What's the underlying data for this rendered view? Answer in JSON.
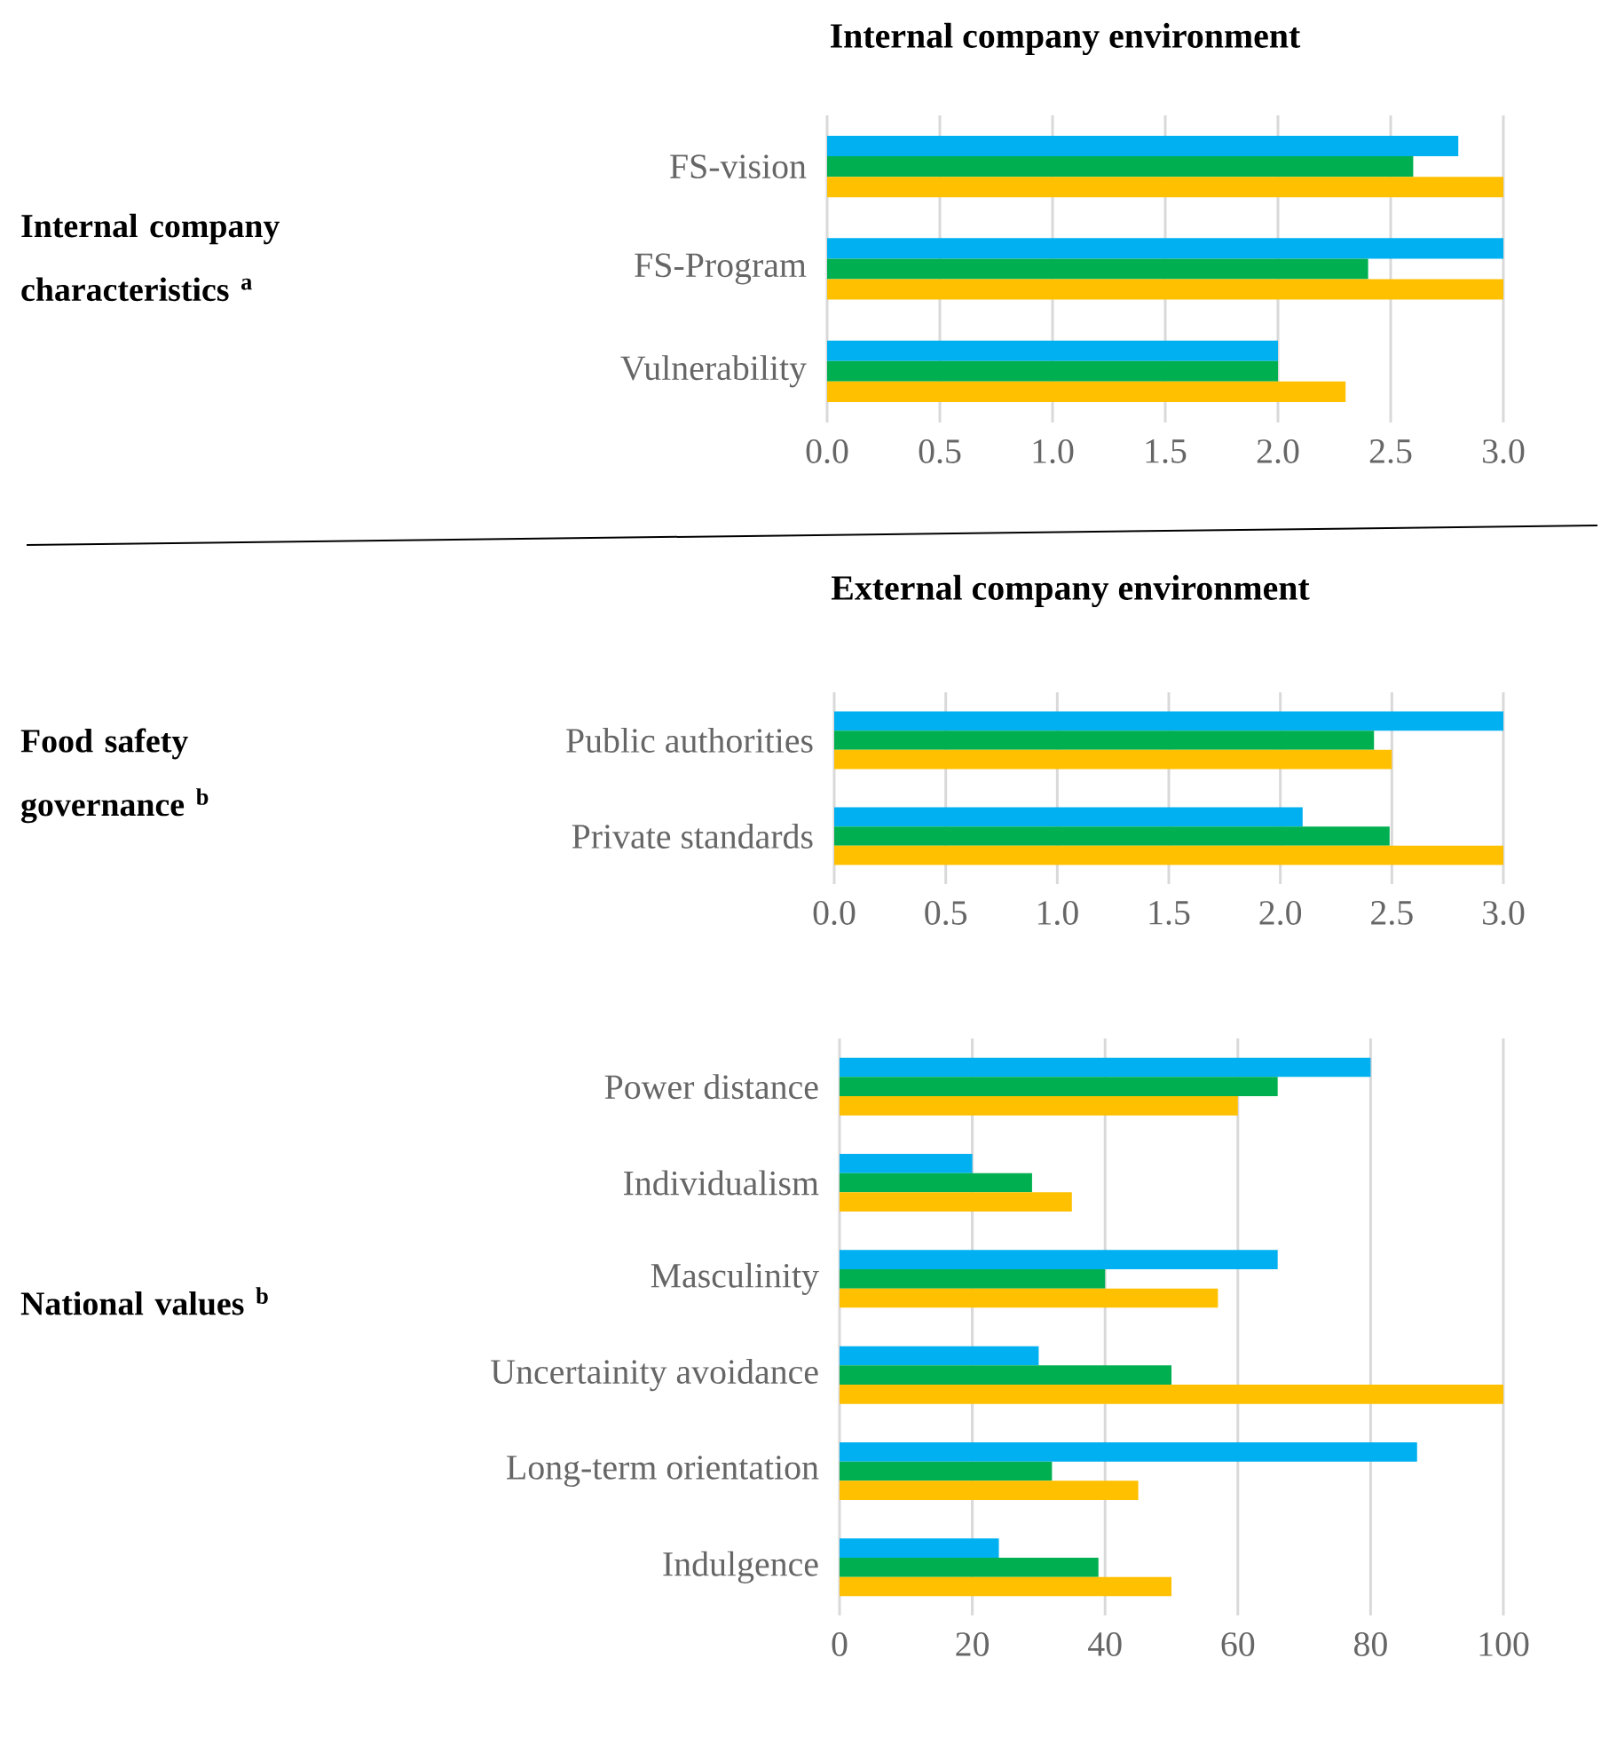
{
  "chart_data": [
    {
      "type": "bar",
      "orientation": "horizontal",
      "title": "Internal company environment",
      "ylabel": "Internal company characteristics $^{a}$",
      "categories": [
        "FS-vision",
        "FS-Program",
        "Vulnerability"
      ],
      "series": [
        {
          "color": "#00b0f0",
          "values": [
            2.8,
            3.0,
            2.0
          ]
        },
        {
          "color": "#00b050",
          "values": [
            2.6,
            2.4,
            2.0
          ]
        },
        {
          "color": "#ffc000",
          "values": [
            3.0,
            3.0,
            2.3
          ]
        }
      ],
      "xlim": [
        0,
        3
      ],
      "xticks": [
        {
          "value": 0,
          "label": "0.0"
        },
        {
          "value": 0.5,
          "label": "0.5"
        },
        {
          "value": 1,
          "label": "1.0"
        },
        {
          "value": 1.5,
          "label": "1.5"
        },
        {
          "value": 2,
          "label": "2.0"
        },
        {
          "value": 2.5,
          "label": "2.5"
        },
        {
          "value": 3,
          "label": "3.0"
        }
      ],
      "grid": "x"
    },
    {
      "type": "bar",
      "orientation": "horizontal",
      "title": "External company environment",
      "ylabel": "Food safety governance $^{b}$",
      "categories": [
        "Public authorities",
        "Private standards"
      ],
      "series": [
        {
          "color": "#00b0f0",
          "values": [
            3.0,
            2.1
          ]
        },
        {
          "color": "#00b050",
          "values": [
            2.42,
            2.49
          ]
        },
        {
          "color": "#ffc000",
          "values": [
            2.5,
            3.0
          ]
        }
      ],
      "xlim": [
        0,
        3
      ],
      "xticks": [
        {
          "value": 0,
          "label": "0.0"
        },
        {
          "value": 0.5,
          "label": "0.5"
        },
        {
          "value": 1,
          "label": "1.0"
        },
        {
          "value": 1.5,
          "label": "1.5"
        },
        {
          "value": 2,
          "label": "2.0"
        },
        {
          "value": 2.5,
          "label": "2.5"
        },
        {
          "value": 3,
          "label": "3.0"
        }
      ],
      "grid": "x"
    },
    {
      "type": "bar",
      "orientation": "horizontal",
      "ylabel": "National values $^{b}$",
      "categories": [
        "Power distance",
        "Individualism",
        "Masculinity",
        "Uncertainity avoidance",
        "Long-term orientation",
        "Indulgence"
      ],
      "series": [
        {
          "color": "#00b0f0",
          "values": [
            80,
            20,
            66,
            30,
            87,
            24
          ]
        },
        {
          "color": "#00b050",
          "values": [
            66,
            29,
            40,
            50,
            32,
            39
          ]
        },
        {
          "color": "#ffc000",
          "values": [
            60,
            35,
            57,
            100,
            45,
            50
          ]
        }
      ],
      "xlim": [
        0,
        100
      ],
      "xticks": [
        0,
        20,
        40,
        60,
        80,
        100
      ],
      "grid": "x"
    }
  ]
}
